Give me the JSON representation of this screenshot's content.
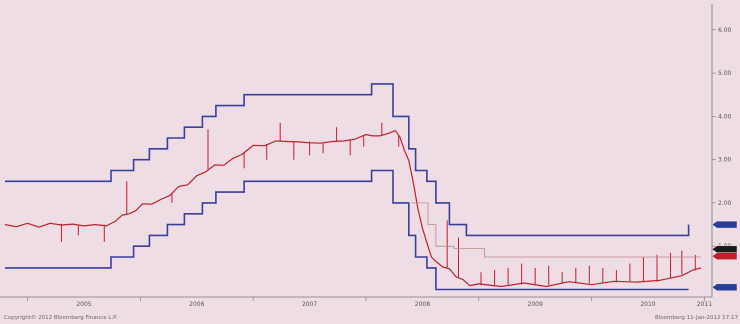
{
  "chart_data": {
    "type": "line",
    "title": "",
    "xlabel": "",
    "ylabel": "",
    "x_tick_labels": [
      "2005",
      "2006",
      "2007",
      "2008",
      "2009",
      "2010",
      "2011"
    ],
    "y_tick_labels": [
      "6.00",
      "5.00",
      "4.00",
      "3.00",
      "2.00",
      "1.00"
    ],
    "xlim": [
      2004.8,
      2011.05
    ],
    "ylim": [
      -0.15,
      6.55
    ],
    "grid": false,
    "colors": {
      "background": "#efdde6",
      "band": "#3a3f9a",
      "rate": "#c0202a",
      "guide": "#c08888",
      "badge_blue": "#2b3d9a",
      "badge_dark": "#1a1a1a"
    },
    "series": [
      {
        "role": "upper-band",
        "color": "#3a3f9a",
        "shape": "step",
        "x": [
          2004.8,
          2005.74,
          2005.94,
          2006.08,
          2006.24,
          2006.39,
          2006.55,
          2006.67,
          2006.92,
          2008.05,
          2008.09,
          2008.24,
          2008.38,
          2008.44,
          2008.54,
          2008.62,
          2008.74,
          2008.89,
          2010.77,
          2010.86
        ],
        "y": [
          2.5,
          2.75,
          3.0,
          3.25,
          3.5,
          3.75,
          4.0,
          4.25,
          4.5,
          4.75,
          4.75,
          4.0,
          3.25,
          2.75,
          2.5,
          2.0,
          1.5,
          1.25,
          1.25,
          1.5
        ]
      },
      {
        "role": "lower-band",
        "color": "#3a3f9a",
        "shape": "step",
        "x": [
          2004.8,
          2005.74,
          2005.94,
          2006.08,
          2006.24,
          2006.39,
          2006.55,
          2006.67,
          2006.92,
          2008.05,
          2008.09,
          2008.24,
          2008.38,
          2008.44,
          2008.54,
          2008.62,
          2008.74,
          2008.89,
          2010.77,
          2010.86
        ],
        "y": [
          0.5,
          0.75,
          1.0,
          1.25,
          1.5,
          1.75,
          2.0,
          2.25,
          2.5,
          2.75,
          2.75,
          2.0,
          1.25,
          0.75,
          0.5,
          0.0,
          0.0,
          0.0,
          0.0,
          0.0
        ]
      },
      {
        "role": "rate",
        "color": "#c0202a",
        "shape": "line",
        "x": [
          2004.8,
          2004.9,
          2005.0,
          2005.1,
          2005.2,
          2005.3,
          2005.4,
          2005.5,
          2005.6,
          2005.7,
          2005.78,
          2005.84,
          2005.9,
          2005.96,
          2006.02,
          2006.1,
          2006.18,
          2006.26,
          2006.34,
          2006.42,
          2006.5,
          2006.58,
          2006.66,
          2006.74,
          2006.82,
          2006.9,
          2007.0,
          2007.1,
          2007.2,
          2007.3,
          2007.4,
          2007.5,
          2007.6,
          2007.7,
          2007.8,
          2007.9,
          2008.0,
          2008.06,
          2008.12,
          2008.18,
          2008.22,
          2008.26,
          2008.3,
          2008.34,
          2008.38,
          2008.42,
          2008.46,
          2008.5,
          2008.54,
          2008.58,
          2008.62,
          2008.68,
          2008.74,
          2008.8,
          2008.86,
          2008.92,
          2009.0,
          2009.2,
          2009.4,
          2009.6,
          2009.8,
          2010.0,
          2010.2,
          2010.4,
          2010.6,
          2010.8,
          2010.9,
          2010.97
        ],
        "y": [
          1.5,
          1.48,
          1.5,
          1.47,
          1.5,
          1.52,
          1.48,
          1.5,
          1.47,
          1.5,
          1.55,
          1.75,
          1.72,
          1.85,
          1.95,
          2.0,
          2.05,
          2.2,
          2.35,
          2.45,
          2.6,
          2.75,
          2.85,
          2.9,
          3.0,
          3.15,
          3.3,
          3.35,
          3.4,
          3.45,
          3.38,
          3.42,
          3.35,
          3.45,
          3.4,
          3.5,
          3.55,
          3.58,
          3.52,
          3.62,
          3.6,
          3.7,
          3.5,
          3.25,
          2.95,
          2.5,
          1.85,
          1.45,
          1.05,
          0.78,
          0.62,
          0.55,
          0.45,
          0.32,
          0.2,
          0.12,
          0.1,
          0.1,
          0.12,
          0.1,
          0.15,
          0.14,
          0.16,
          0.2,
          0.18,
          0.35,
          0.42,
          0.5
        ]
      },
      {
        "role": "spikes",
        "color": "#c0202a",
        "shape": "spikes",
        "x": [
          2005.3,
          2005.45,
          2005.68,
          2005.88,
          2006.28,
          2006.6,
          2006.92,
          2007.12,
          2007.24,
          2007.36,
          2007.5,
          2007.62,
          2007.74,
          2007.86,
          2007.98,
          2008.14,
          2008.29,
          2008.72,
          2008.82,
          2009.02,
          2009.14,
          2009.26,
          2009.38,
          2009.5,
          2009.62,
          2009.74,
          2009.86,
          2009.98,
          2010.1,
          2010.22,
          2010.34,
          2010.46,
          2010.58,
          2010.7,
          2010.8,
          2010.92
        ],
        "y": [
          1.1,
          1.25,
          1.1,
          2.5,
          2.0,
          3.7,
          2.8,
          3.0,
          3.85,
          3.0,
          3.1,
          3.15,
          3.75,
          3.1,
          3.3,
          3.85,
          3.3,
          1.6,
          1.2,
          0.4,
          0.45,
          0.5,
          0.6,
          0.5,
          0.55,
          0.4,
          0.5,
          0.55,
          0.5,
          0.45,
          0.6,
          0.75,
          0.8,
          0.85,
          0.9,
          0.8
        ]
      },
      {
        "role": "guide",
        "color": "#c08888",
        "shape": "step",
        "x": [
          2008.4,
          2008.55,
          2008.62,
          2008.78,
          2009.05,
          2010.97
        ],
        "y": [
          2.0,
          1.5,
          1.0,
          0.95,
          0.75,
          0.75
        ]
      }
    ],
    "badges": [
      {
        "y": 1.5,
        "color": "#2b3d9a"
      },
      {
        "y": 0.93,
        "color": "#1a1a1a"
      },
      {
        "y": 0.77,
        "color": "#c0202a"
      },
      {
        "y": 0.05,
        "color": "#2b3d9a"
      }
    ],
    "footer": {
      "left": "Copyright© 2012 Bloomberg Finance L.P.",
      "right": "Bloomberg 11-Jan-2012 17:17"
    }
  }
}
